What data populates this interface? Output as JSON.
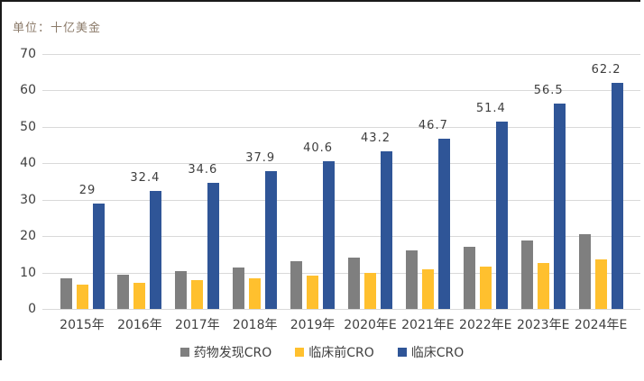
{
  "chart": {
    "unit_label": "单位：十亿美金"
  },
  "chart_data": {
    "type": "bar",
    "title": "",
    "xlabel": "",
    "ylabel": "单位：十亿美金",
    "ylim": [
      0,
      70
    ],
    "ytick_step": 10,
    "yticks": [
      "0",
      "10",
      "20",
      "30",
      "40",
      "50",
      "60",
      "70"
    ],
    "grid": true,
    "legend_position": "bottom",
    "categories": [
      "2015年",
      "2016年",
      "2017年",
      "2018年",
      "2019年",
      "2020年E",
      "2021年E",
      "2022年E",
      "2023年E",
      "2024年E"
    ],
    "series": [
      {
        "name": "药物发现CRO",
        "color": "#7f7f7f",
        "values": [
          8.5,
          9.5,
          10.3,
          11.5,
          13.0,
          14.2,
          16.0,
          17.1,
          18.8,
          20.5
        ],
        "labels_shown": false
      },
      {
        "name": "临床前CRO",
        "color": "#ffc02e",
        "values": [
          6.8,
          7.2,
          7.8,
          8.5,
          9.1,
          9.8,
          10.8,
          11.7,
          12.5,
          13.6
        ],
        "labels_shown": false
      },
      {
        "name": "临床CRO",
        "color": "#2f5597",
        "values": [
          29,
          32.4,
          34.6,
          37.9,
          40.6,
          43.2,
          46.7,
          51.4,
          56.5,
          62.2
        ],
        "labels_shown": true,
        "labels": [
          "29",
          "32.4",
          "34.6",
          "37.9",
          "40.6",
          "43.2",
          "46.7",
          "51.4",
          "56.5",
          "62.2"
        ]
      }
    ],
    "colors": {
      "gridline": "#d9d9d9",
      "tick_text": "#3f3f3f",
      "value_label_text": "#3d3d3d",
      "unit_text": "#8b7a69",
      "frame_border": "#1a1a1a"
    }
  }
}
